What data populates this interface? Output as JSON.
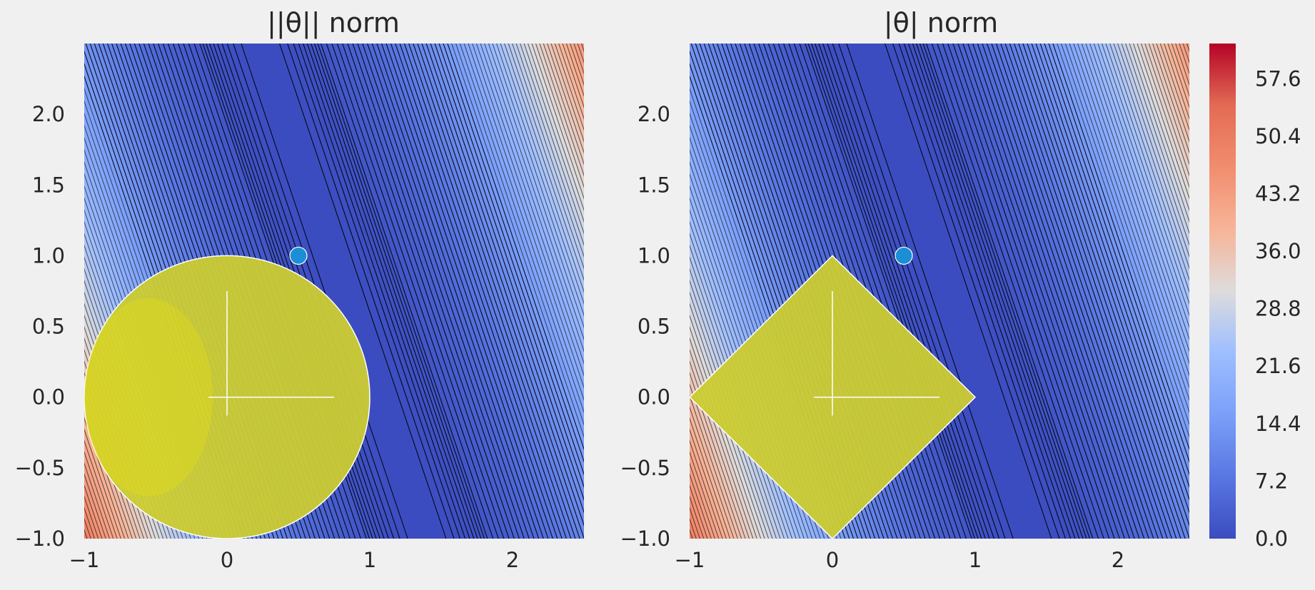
{
  "chart_data": [
    {
      "type": "contour",
      "title": "||θ|| norm",
      "xlim": [
        -1,
        2.5
      ],
      "ylim": [
        -1,
        2.5
      ],
      "x_ticks": [
        "−1",
        "0",
        "1",
        "2"
      ],
      "y_ticks": [
        "−1.0",
        "−0.5",
        "0.0",
        "0.5",
        "1.0",
        "1.5",
        "2.0"
      ],
      "x_tick_values": [
        -1,
        0,
        1,
        2
      ],
      "y_tick_values": [
        -1.0,
        -0.5,
        0.0,
        0.5,
        1.0,
        1.5,
        2.0
      ],
      "constraint_region": {
        "shape": "circle",
        "center": [
          0,
          0
        ],
        "radius": 1,
        "color": "#cccc33"
      },
      "optimum_point": {
        "x": 0.5,
        "y": 1.0,
        "color": "#1a8fd6"
      },
      "axes_cross": {
        "x_range": [
          -0.13,
          0.75
        ],
        "y_range": [
          -0.13,
          0.75
        ]
      },
      "grid": false
    },
    {
      "type": "contour",
      "title": "|θ| norm",
      "xlim": [
        -1,
        2.5
      ],
      "ylim": [
        -1,
        2.5
      ],
      "x_ticks": [
        "−1",
        "0",
        "1",
        "2"
      ],
      "y_ticks": [
        "−1.0",
        "−0.5",
        "0.0",
        "0.5",
        "1.0",
        "1.5",
        "2.0"
      ],
      "x_tick_values": [
        -1,
        0,
        1,
        2
      ],
      "y_tick_values": [
        -1.0,
        -0.5,
        0.0,
        0.5,
        1.0,
        1.5,
        2.0
      ],
      "constraint_region": {
        "shape": "diamond",
        "center": [
          0,
          0
        ],
        "radius": 1,
        "color": "#cccc33"
      },
      "optimum_point": {
        "x": 0.5,
        "y": 1.0,
        "color": "#1a8fd6"
      },
      "axes_cross": {
        "x_range": [
          -0.13,
          0.75
        ],
        "y_range": [
          -0.13,
          0.75
        ]
      },
      "grid": false
    }
  ],
  "colorbar": {
    "colormap": "coolwarm",
    "range": [
      0,
      62
    ],
    "tick_values": [
      0.0,
      7.2,
      14.4,
      21.6,
      28.8,
      36.0,
      43.2,
      50.4,
      57.6
    ],
    "tick_labels": [
      "0.0",
      "7.2",
      "14.4",
      "21.6",
      "28.8",
      "36.0",
      "43.2",
      "50.4",
      "57.6"
    ]
  },
  "colors": {
    "background": "#f0f0f0",
    "text": "#262626",
    "contour_line": "#000000",
    "region_edge": "#ffffff"
  }
}
